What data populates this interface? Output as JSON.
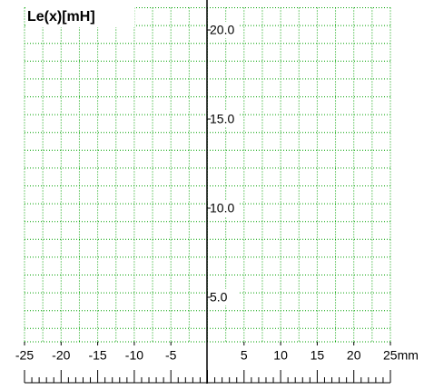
{
  "chart_data": {
    "type": "line",
    "title": "Le(x)[mH]",
    "xlim": [
      -25,
      25
    ],
    "xticks": [
      -25,
      -20,
      -15,
      -10,
      -5,
      5,
      10,
      15,
      20,
      {
        "value": 25,
        "label": "25mm"
      }
    ],
    "ylim": [
      2.5,
      21.25
    ],
    "yticks": [
      {
        "value": 5,
        "label": "5.0"
      },
      {
        "value": 10,
        "label": "10.0"
      },
      {
        "value": 15,
        "label": "15.0"
      },
      {
        "value": 20,
        "label": "20.0"
      }
    ],
    "grid": true,
    "grid_color": "#00a000",
    "xgrid_step": 2.5,
    "ygrid_step": 1,
    "ruler_step": 1,
    "series": []
  }
}
